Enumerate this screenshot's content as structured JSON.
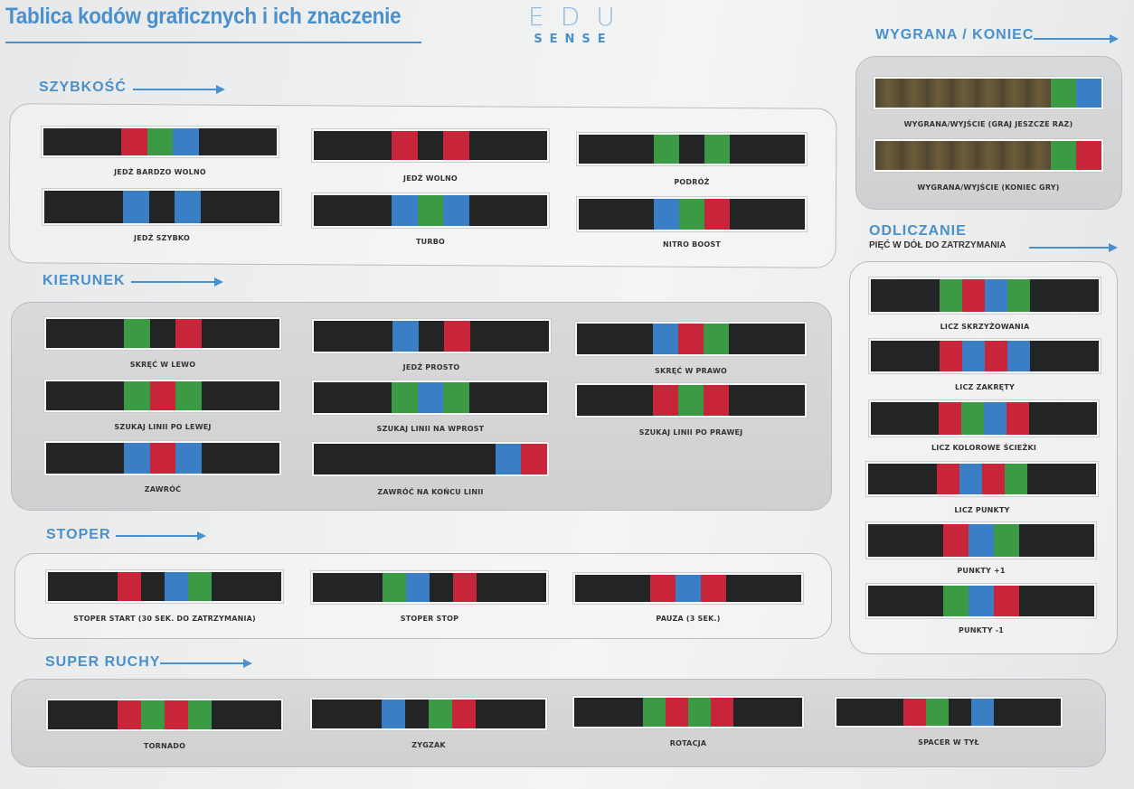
{
  "header": {
    "title": "Tablica kodów graficznych i ich znaczenie",
    "logo_mark": "EDU",
    "logo_sub": "SENSE"
  },
  "colors": {
    "black": "#232426",
    "red": "#c8253a",
    "green": "#3b9a44",
    "blue": "#3a7fc6",
    "gold": "#5e5236",
    "accent": "#4a90cc"
  },
  "sections": {
    "szybkosc": {
      "title": "SZYBKOŚĆ",
      "items": [
        {
          "label": "JEDŹ BARDZO WOLNO",
          "code": [
            "k",
            "k",
            "k",
            "r",
            "g",
            "b",
            "k",
            "k",
            "k"
          ]
        },
        {
          "label": "JEDŹ WOLNO",
          "code": [
            "k",
            "k",
            "k",
            "r",
            "k",
            "r",
            "k",
            "k",
            "k"
          ]
        },
        {
          "label": "PODRÓŻ",
          "code": [
            "k",
            "k",
            "k",
            "g",
            "k",
            "g",
            "k",
            "k",
            "k"
          ]
        },
        {
          "label": "JEDŹ SZYBKO",
          "code": [
            "k",
            "k",
            "k",
            "b",
            "k",
            "b",
            "k",
            "k",
            "k"
          ]
        },
        {
          "label": "TURBO",
          "code": [
            "k",
            "k",
            "k",
            "b",
            "g",
            "b",
            "k",
            "k",
            "k"
          ]
        },
        {
          "label": "NITRO BOOST",
          "code": [
            "k",
            "k",
            "k",
            "b",
            "g",
            "r",
            "k",
            "k",
            "k"
          ]
        }
      ]
    },
    "kierunek": {
      "title": "KIERUNEK",
      "items": [
        {
          "label": "SKRĘĆ W LEWO",
          "code": [
            "k",
            "k",
            "k",
            "g",
            "k",
            "r",
            "k",
            "k",
            "k"
          ]
        },
        {
          "label": "JEDŹ PROSTO",
          "code": [
            "k",
            "k",
            "k",
            "b",
            "k",
            "r",
            "k",
            "k",
            "k"
          ]
        },
        {
          "label": "SKRĘĆ W PRAWO",
          "code": [
            "k",
            "k",
            "k",
            "b",
            "r",
            "g",
            "k",
            "k",
            "k"
          ]
        },
        {
          "label": "SZUKAJ LINII PO LEWEJ",
          "code": [
            "k",
            "k",
            "k",
            "g",
            "r",
            "g",
            "k",
            "k",
            "k"
          ]
        },
        {
          "label": "SZUKAJ LINII NA WPROST",
          "code": [
            "k",
            "k",
            "k",
            "g",
            "b",
            "g",
            "k",
            "k",
            "k"
          ]
        },
        {
          "label": "SZUKAJ LINII PO PRAWEJ",
          "code": [
            "k",
            "k",
            "k",
            "r",
            "g",
            "r",
            "k",
            "k",
            "k"
          ]
        },
        {
          "label": "ZAWRÓĆ",
          "code": [
            "k",
            "k",
            "k",
            "b",
            "r",
            "b",
            "k",
            "k",
            "k"
          ]
        },
        {
          "label": "ZAWRÓĆ NA KOŃCU LINII",
          "code": [
            "k",
            "k",
            "k",
            "k",
            "k",
            "k",
            "k",
            "b",
            "r"
          ]
        }
      ]
    },
    "stoper": {
      "title": "STOPER",
      "items": [
        {
          "label": "STOPER START (30 SEK. DO ZATRZYMANIA)",
          "code": [
            "k",
            "k",
            "k",
            "r",
            "k",
            "b",
            "g",
            "k",
            "k",
            "k"
          ]
        },
        {
          "label": "STOPER STOP",
          "code": [
            "k",
            "k",
            "k",
            "g",
            "b",
            "k",
            "r",
            "k",
            "k",
            "k"
          ]
        },
        {
          "label": "PAUZA (3 SEK.)",
          "code": [
            "k",
            "k",
            "k",
            "r",
            "b",
            "r",
            "k",
            "k",
            "k"
          ]
        }
      ]
    },
    "super_ruchy": {
      "title": "SUPER RUCHY",
      "items": [
        {
          "label": "TORNADO",
          "code": [
            "k",
            "k",
            "k",
            "r",
            "g",
            "r",
            "g",
            "k",
            "k",
            "k"
          ]
        },
        {
          "label": "ZYGZAK",
          "code": [
            "k",
            "k",
            "k",
            "b",
            "k",
            "g",
            "r",
            "k",
            "k",
            "k"
          ]
        },
        {
          "label": "ROTACJA",
          "code": [
            "k",
            "k",
            "k",
            "g",
            "r",
            "g",
            "r",
            "k",
            "k",
            "k"
          ]
        },
        {
          "label": "SPACER W TYŁ",
          "code": [
            "k",
            "k",
            "k",
            "r",
            "g",
            "k",
            "b",
            "k",
            "k",
            "k"
          ]
        }
      ]
    },
    "wygrana": {
      "title": "WYGRANA / KONIEC",
      "items": [
        {
          "label": "WYGRANA/WYJŚCIE (GRAJ JESZCZE RAZ)",
          "code": [
            "y",
            "y",
            "y",
            "y",
            "y",
            "y",
            "y",
            "g",
            "b"
          ]
        },
        {
          "label": "WYGRANA/WYJŚCIE (KONIEC GRY)",
          "code": [
            "y",
            "y",
            "y",
            "y",
            "y",
            "y",
            "y",
            "g",
            "r"
          ]
        }
      ]
    },
    "odliczanie": {
      "title": "ODLICZANIE",
      "subtitle": "PIĘĆ W DÓŁ DO ZATRZYMANIA",
      "items": [
        {
          "label": "LICZ SKRZYŻOWANIA",
          "code": [
            "k",
            "k",
            "k",
            "g",
            "r",
            "b",
            "g",
            "k",
            "k",
            "k"
          ]
        },
        {
          "label": "LICZ ZAKRĘTY",
          "code": [
            "k",
            "k",
            "k",
            "r",
            "b",
            "r",
            "b",
            "k",
            "k",
            "k"
          ]
        },
        {
          "label": "LICZ KOLOROWE ŚCIEŻKI",
          "code": [
            "k",
            "k",
            "k",
            "r",
            "g",
            "b",
            "r",
            "k",
            "k",
            "k"
          ]
        },
        {
          "label": "LICZ PUNKTY",
          "code": [
            "k",
            "k",
            "k",
            "r",
            "b",
            "r",
            "g",
            "k",
            "k",
            "k"
          ]
        },
        {
          "label": "PUNKTY +1",
          "code": [
            "k",
            "k",
            "k",
            "r",
            "b",
            "g",
            "k",
            "k",
            "k"
          ]
        },
        {
          "label": "PUNKTY -1",
          "code": [
            "k",
            "k",
            "k",
            "g",
            "b",
            "r",
            "k",
            "k",
            "k"
          ]
        }
      ]
    }
  }
}
